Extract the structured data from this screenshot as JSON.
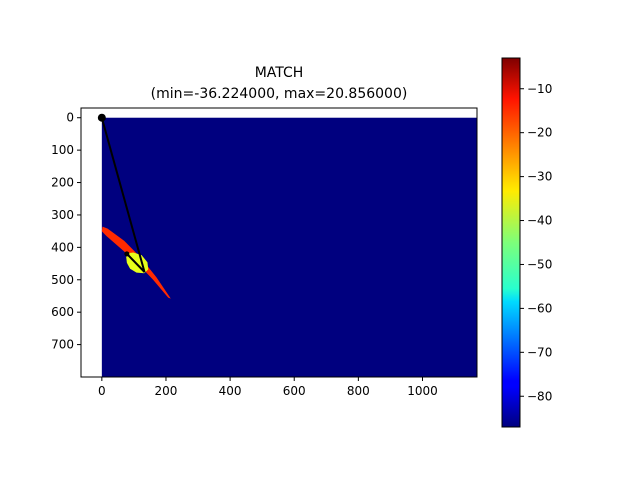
{
  "chart_data": {
    "type": "heatmap",
    "title_lines": [
      "MATCH",
      "(min=-36.224000, max=20.856000)"
    ],
    "xlabel": "",
    "ylabel": "",
    "x_ticks": [
      0,
      200,
      400,
      600,
      800,
      1000
    ],
    "y_ticks": [
      0,
      100,
      200,
      300,
      400,
      500,
      600,
      700
    ],
    "xlim": [
      -65,
      1170
    ],
    "ylim": [
      800,
      -30
    ],
    "image_extent": {
      "x": [
        0,
        1170
      ],
      "y": [
        0,
        800
      ]
    },
    "background_value": -87,
    "colormap": "jet",
    "colorbar": {
      "range": [
        -87,
        -3
      ],
      "ticks": [
        -10,
        -20,
        -30,
        -40,
        -50,
        -60,
        -70,
        -80
      ]
    },
    "regions": [
      {
        "name": "red-band",
        "value": -16,
        "color": "#ff2a00",
        "polygon": [
          [
            2,
            336
          ],
          [
            18,
            342
          ],
          [
            70,
            380
          ],
          [
            120,
            430
          ],
          [
            170,
            492
          ],
          [
            215,
            558
          ],
          [
            207,
            555
          ],
          [
            160,
            500
          ],
          [
            110,
            448
          ],
          [
            55,
            400
          ],
          [
            15,
            366
          ],
          [
            0,
            350
          ]
        ]
      },
      {
        "name": "yellow-blob",
        "value": -36,
        "color": "#e6ff1a",
        "polygon": [
          [
            80,
            418
          ],
          [
            98,
            416
          ],
          [
            124,
            424
          ],
          [
            142,
            446
          ],
          [
            145,
            468
          ],
          [
            132,
            480
          ],
          [
            108,
            478
          ],
          [
            88,
            466
          ],
          [
            78,
            448
          ],
          [
            76,
            430
          ]
        ]
      }
    ],
    "path_points": [
      [
        0,
        0
      ],
      [
        133,
        476
      ],
      [
        78,
        420
      ]
    ],
    "path_color": "#000000"
  }
}
